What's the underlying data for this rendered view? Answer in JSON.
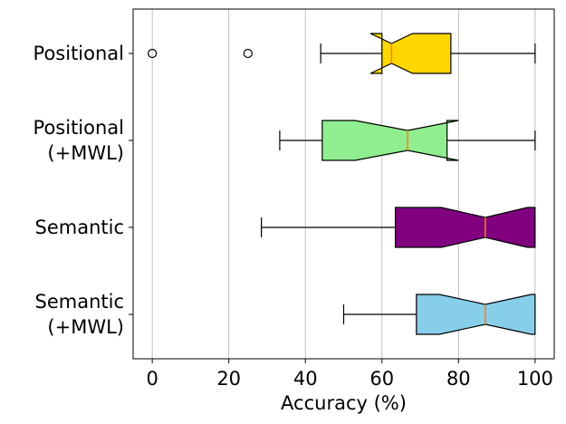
{
  "chart_data": {
    "type": "boxplot",
    "orientation": "horizontal",
    "notched": true,
    "title": "",
    "xlabel": "Accuracy (%)",
    "ylabel": "",
    "xlim": [
      -5,
      105
    ],
    "xticks": [
      0,
      20,
      40,
      60,
      80,
      100
    ],
    "grid": "vertical",
    "categories": [
      {
        "label_lines": [
          "Positional"
        ],
        "color": "#FFD700",
        "whisker_low": 44,
        "q1": 60,
        "median": 62.5,
        "q3": 78,
        "whisker_high": 100,
        "notch_low": 57,
        "notch_high": 68,
        "outliers": [
          0,
          25
        ]
      },
      {
        "label_lines": [
          "Positional",
          "(+MWL)"
        ],
        "color": "#90EE90",
        "whisker_low": 33.3,
        "q1": 44.4,
        "median": 66.7,
        "q3": 77,
        "whisker_high": 100,
        "notch_low": 53,
        "notch_high": 80,
        "outliers": []
      },
      {
        "label_lines": [
          "Semantic"
        ],
        "color": "#800080",
        "whisker_low": 28.5,
        "q1": 63.5,
        "median": 87,
        "q3": 100,
        "whisker_high": 100,
        "notch_low": 75.5,
        "notch_high": 98,
        "outliers": []
      },
      {
        "label_lines": [
          "Semantic",
          "(+MWL)"
        ],
        "color": "#87CEEB",
        "whisker_low": 50,
        "q1": 69,
        "median": 87,
        "q3": 100,
        "whisker_high": 100,
        "notch_low": 75,
        "notch_high": 99,
        "outliers": []
      }
    ],
    "median_color": "#FF7F0E"
  }
}
